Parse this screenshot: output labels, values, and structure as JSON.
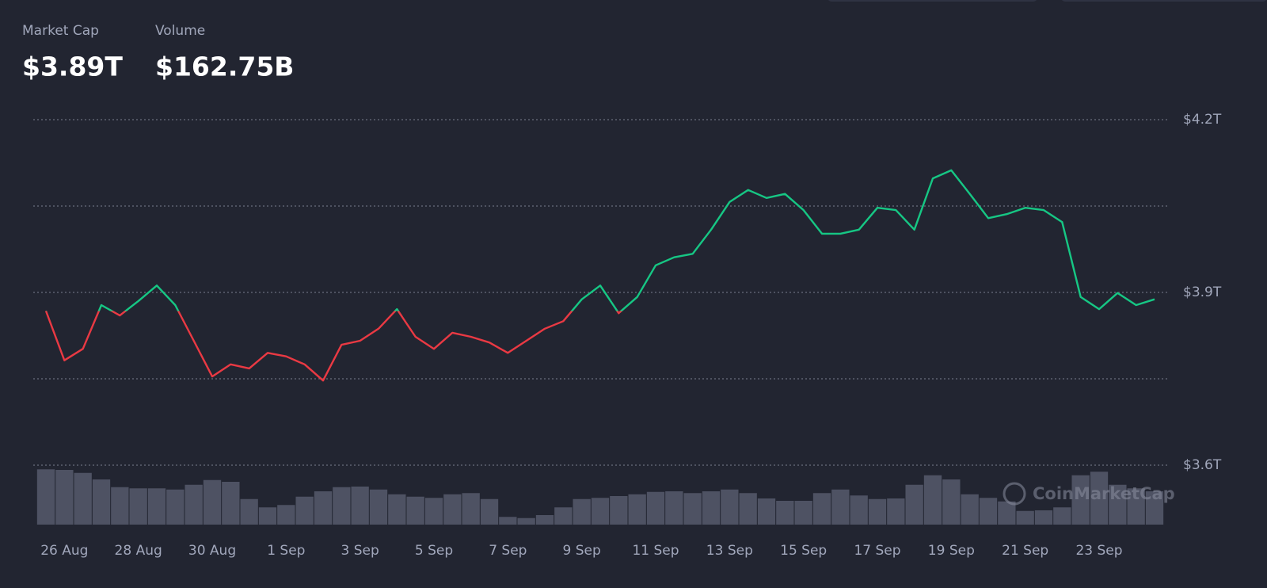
{
  "stats": [
    {
      "label": "Market Cap",
      "value": "$3.89T"
    },
    {
      "label": "Volume",
      "value": "$162.75B"
    }
  ],
  "watermark": "CoinMarketCap",
  "chart_data": {
    "type": "line",
    "categories": [
      null,
      "26 Aug",
      null,
      null,
      null,
      "28 Aug",
      null,
      null,
      null,
      "30 Aug",
      null,
      null,
      null,
      "1 Sep",
      null,
      null,
      null,
      "3 Sep",
      null,
      null,
      null,
      "5 Sep",
      null,
      null,
      null,
      "7 Sep",
      null,
      null,
      null,
      "9 Sep",
      null,
      null,
      null,
      "11 Sep",
      null,
      null,
      null,
      "13 Sep",
      null,
      null,
      null,
      "15 Sep",
      null,
      null,
      null,
      "17 Sep",
      null,
      null,
      null,
      "19 Sep",
      null,
      null,
      null,
      "21 Sep",
      null,
      null,
      null,
      "23 Sep",
      null,
      null,
      null
    ],
    "series": [
      {
        "color": "#16c784",
        "down_color": "#ea3943",
        "values": [
          3.868,
          3.782,
          3.802,
          3.878,
          3.86,
          3.885,
          3.912,
          3.878,
          3.816,
          3.754,
          3.775,
          3.768,
          3.795,
          3.789,
          3.775,
          3.747,
          3.809,
          3.816,
          3.837,
          3.871,
          3.823,
          3.802,
          3.83,
          3.823,
          3.813,
          3.795,
          3.816,
          3.837,
          3.85,
          3.888,
          3.912,
          3.864,
          3.892,
          3.947,
          3.961,
          3.967,
          4.009,
          4.057,
          4.078,
          4.064,
          4.071,
          4.043,
          4.002,
          4.002,
          4.009,
          4.047,
          4.043,
          4.009,
          4.098,
          4.112,
          4.071,
          4.029,
          4.036,
          4.047,
          4.043,
          4.022,
          3.892,
          3.871,
          3.899,
          3.878,
          3.888
        ]
      },
      {
        "color": "#4e5263",
        "axis": "y2",
        "values": [
          93,
          92,
          87,
          76,
          63,
          61,
          61,
          59,
          67,
          75,
          72,
          43,
          29,
          33,
          47,
          56,
          63,
          64,
          59,
          51,
          47,
          45,
          51,
          53,
          43,
          13,
          11,
          16,
          29,
          43,
          45,
          48,
          51,
          55,
          56,
          53,
          56,
          59,
          53,
          44,
          40,
          40,
          53,
          59,
          49,
          43,
          44,
          67,
          83,
          76,
          51,
          45,
          39,
          23,
          24,
          29,
          83,
          89,
          67,
          61,
          56
        ]
      }
    ],
    "ylim": [
      3.6,
      4.2
    ],
    "yticks": [
      {
        "value": 3.6,
        "label": "$3.6T"
      },
      {
        "value": 3.75
      },
      {
        "value": 3.9,
        "label": "$3.9T"
      },
      {
        "value": 4.05
      },
      {
        "value": 4.2,
        "label": "$4.2T"
      }
    ],
    "y2lim": [
      0,
      100
    ],
    "grid": true
  }
}
